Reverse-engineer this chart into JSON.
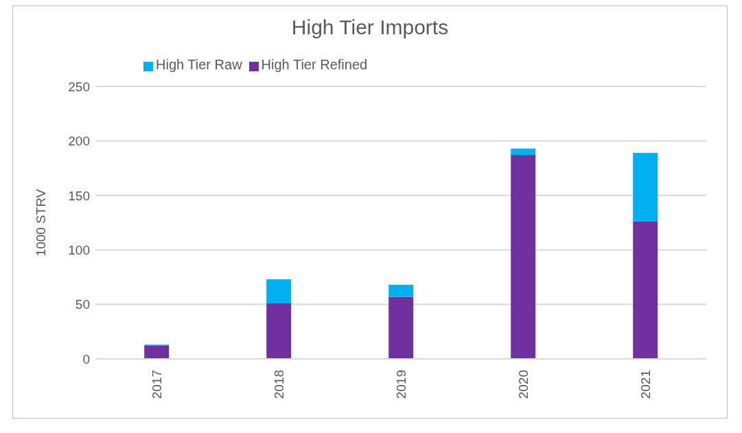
{
  "chart_data": {
    "type": "bar",
    "title": "High Tier Imports",
    "ylabel": "1000 STRV",
    "categories": [
      "2017",
      "2018",
      "2019",
      "2020",
      "2021"
    ],
    "stacked": true,
    "series": [
      {
        "name": "High Tier Refined",
        "color": "#7030a0",
        "values": [
          12,
          51,
          57,
          187,
          126
        ]
      },
      {
        "name": "High Tier Raw",
        "color": "#00b0f0",
        "values": [
          1,
          22,
          11,
          6,
          63
        ]
      }
    ],
    "ylim": [
      0,
      250
    ],
    "yticks": [
      0,
      50,
      100,
      150,
      200,
      250
    ],
    "grid": "y",
    "legend": "top left"
  }
}
